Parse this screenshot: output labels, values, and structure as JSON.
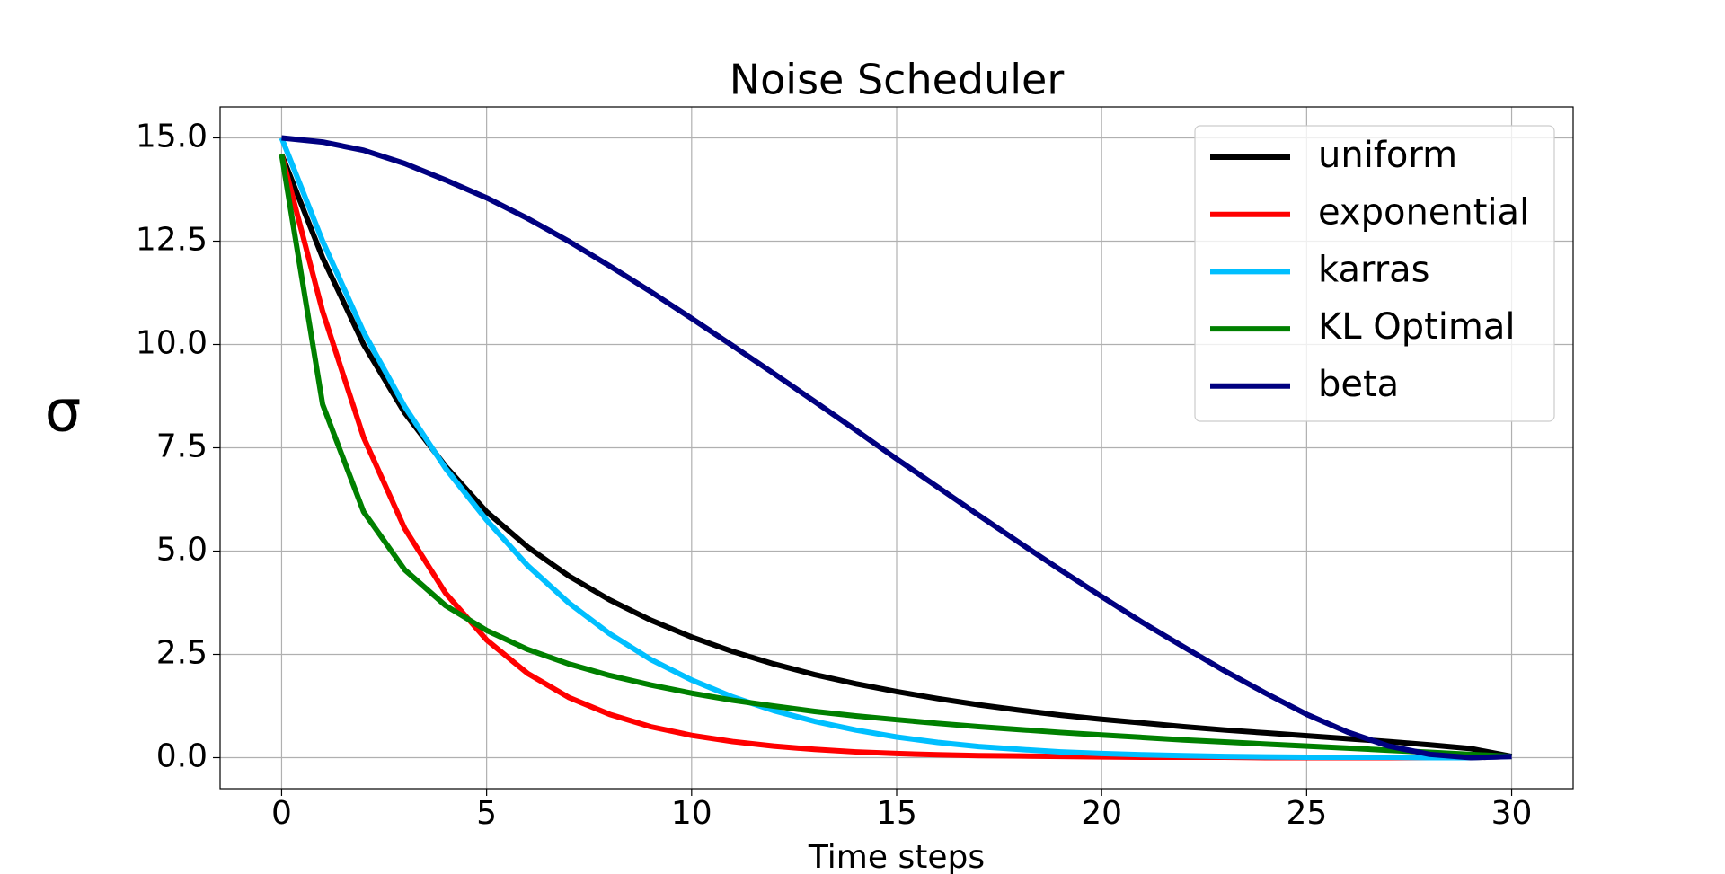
{
  "chart_data": {
    "type": "line",
    "title": "Noise Scheduler",
    "xlabel": "Time steps",
    "ylabel": "σ",
    "x": [
      0,
      1,
      2,
      3,
      4,
      5,
      6,
      7,
      8,
      9,
      10,
      11,
      12,
      13,
      14,
      15,
      16,
      17,
      18,
      19,
      20,
      21,
      22,
      23,
      24,
      25,
      26,
      27,
      28,
      29,
      30
    ],
    "series": [
      {
        "name": "uniform",
        "color": "#000000",
        "values": [
          14.6,
          12.1,
          10.0,
          8.35,
          7.05,
          5.95,
          5.1,
          4.4,
          3.82,
          3.33,
          2.92,
          2.57,
          2.27,
          2.01,
          1.79,
          1.6,
          1.43,
          1.28,
          1.15,
          1.03,
          0.93,
          0.84,
          0.75,
          0.67,
          0.6,
          0.53,
          0.46,
          0.39,
          0.31,
          0.22,
          0.03
        ]
      },
      {
        "name": "exponential",
        "color": "#ff0000",
        "values": [
          14.6,
          10.8,
          7.75,
          5.55,
          3.98,
          2.85,
          2.04,
          1.46,
          1.05,
          0.75,
          0.54,
          0.39,
          0.28,
          0.2,
          0.14,
          0.1,
          0.07,
          0.05,
          0.04,
          0.03,
          0.02,
          0.01,
          0.01,
          0.01,
          0,
          0,
          0,
          0,
          0,
          0,
          0.03
        ]
      },
      {
        "name": "karras",
        "color": "#00bfff",
        "values": [
          15.0,
          12.5,
          10.3,
          8.5,
          7.0,
          5.75,
          4.65,
          3.75,
          3.0,
          2.38,
          1.88,
          1.47,
          1.14,
          0.88,
          0.67,
          0.5,
          0.37,
          0.27,
          0.2,
          0.14,
          0.1,
          0.07,
          0.05,
          0.03,
          0.02,
          0.01,
          0.01,
          0.01,
          0,
          0,
          0.03
        ]
      },
      {
        "name": "KL Optimal",
        "color": "#008000",
        "values": [
          14.6,
          8.55,
          5.95,
          4.55,
          3.68,
          3.08,
          2.62,
          2.27,
          1.99,
          1.76,
          1.56,
          1.39,
          1.25,
          1.12,
          1.01,
          0.92,
          0.83,
          0.75,
          0.68,
          0.61,
          0.55,
          0.49,
          0.43,
          0.38,
          0.33,
          0.28,
          0.23,
          0.18,
          0.13,
          0.08,
          0.03
        ]
      },
      {
        "name": "beta",
        "color": "#000080",
        "values": [
          15.0,
          14.9,
          14.7,
          14.38,
          13.98,
          13.55,
          13.05,
          12.5,
          11.9,
          11.28,
          10.63,
          9.97,
          9.3,
          8.62,
          7.93,
          7.23,
          6.55,
          5.87,
          5.2,
          4.54,
          3.9,
          3.27,
          2.68,
          2.1,
          1.56,
          1.05,
          0.62,
          0.28,
          0.08,
          0,
          0.03
        ]
      }
    ],
    "xlim": [
      -1.5,
      31.5
    ],
    "xticks": [
      0,
      5,
      10,
      15,
      20,
      25,
      30
    ],
    "ylim": [
      -0.75,
      15.75
    ],
    "yticks": [
      {
        "value": 0,
        "label": "0.0"
      },
      {
        "value": 2.5,
        "label": "2.5"
      },
      {
        "value": 5,
        "label": "5.0"
      },
      {
        "value": 7.5,
        "label": "7.5"
      },
      {
        "value": 10,
        "label": "10.0"
      },
      {
        "value": 12.5,
        "label": "12.5"
      },
      {
        "value": 15,
        "label": "15.0"
      }
    ],
    "grid": true,
    "legend": "upper right"
  }
}
